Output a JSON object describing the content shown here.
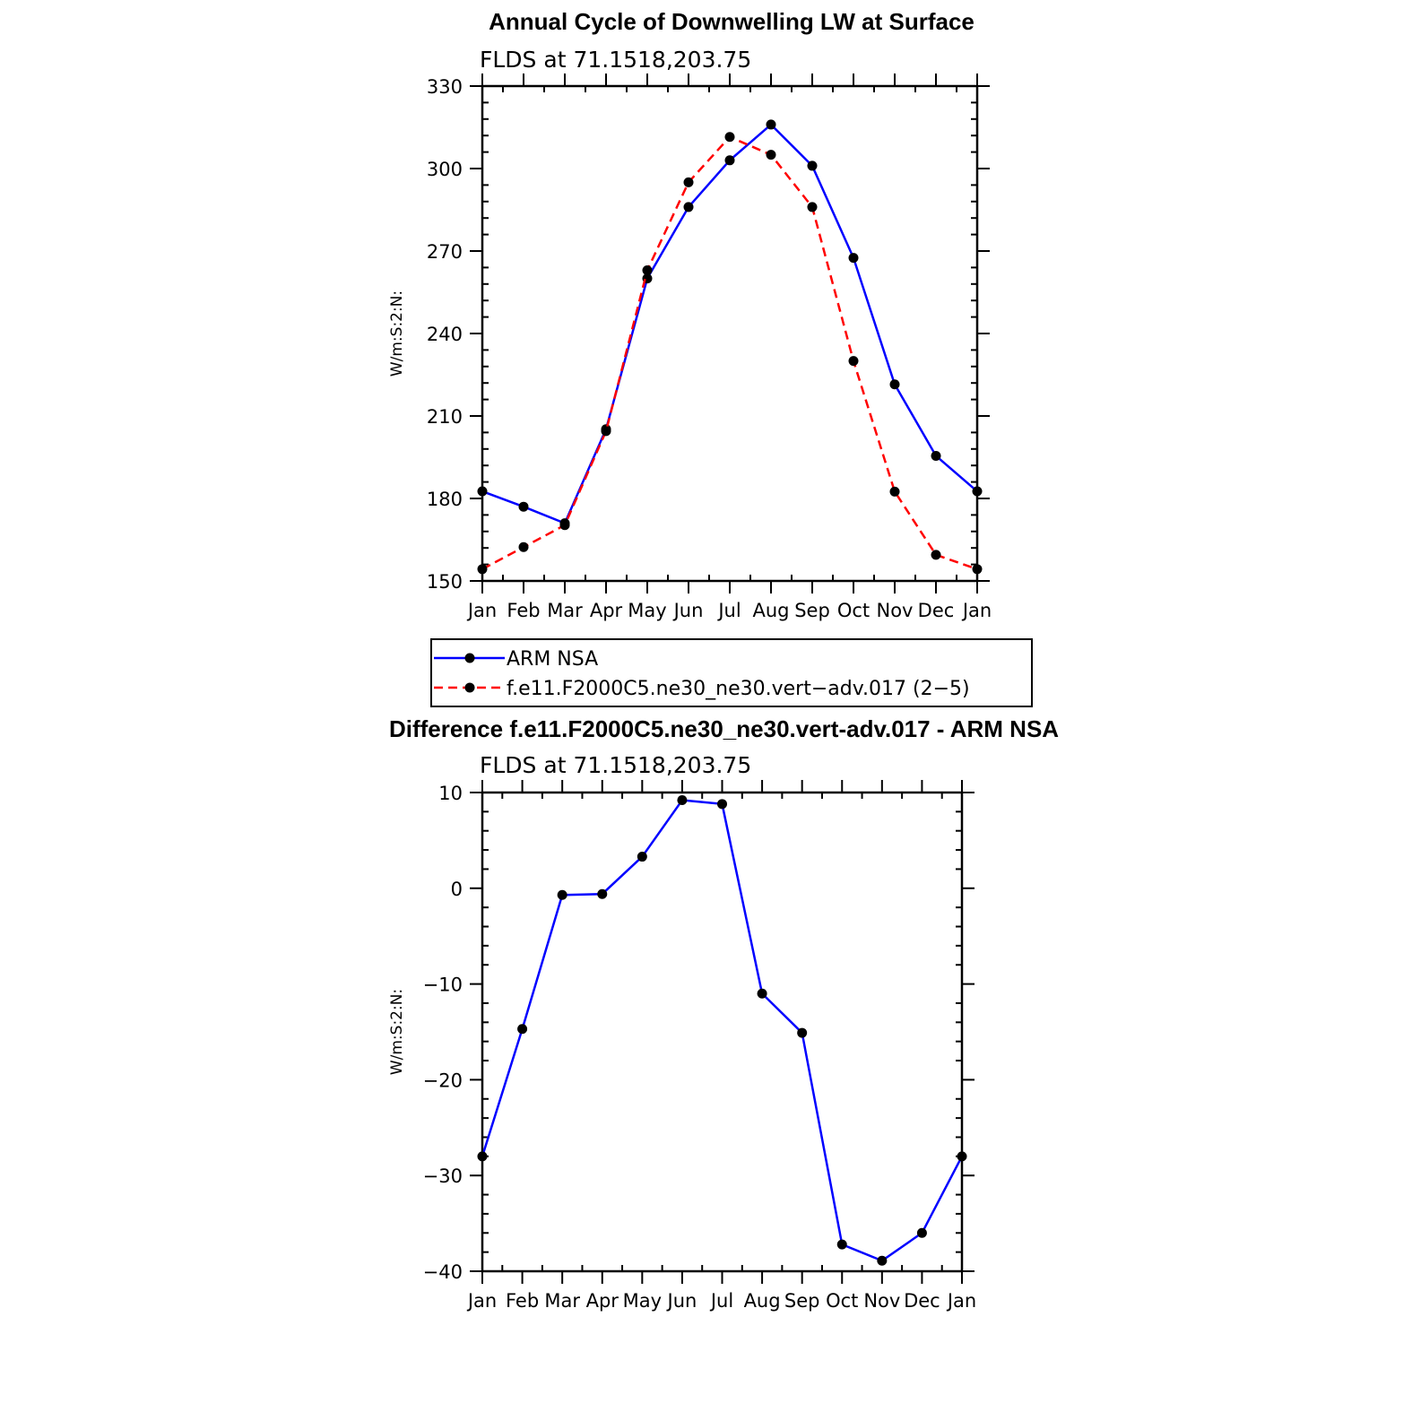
{
  "chart_data": [
    {
      "type": "line",
      "title": "Annual Cycle of Downwelling LW at Surface",
      "subtitle": "FLDS at 71.1518,203.75",
      "ylabel": "W/m:S:2:N:",
      "xlabel": "",
      "categories": [
        "Jan",
        "Feb",
        "Mar",
        "Apr",
        "May",
        "Jun",
        "Jul",
        "Aug",
        "Sep",
        "Oct",
        "Nov",
        "Dec",
        "Jan"
      ],
      "ylim": [
        150,
        330
      ],
      "yticks": [
        "150",
        "180",
        "210",
        "240",
        "270",
        "300",
        "330"
      ],
      "series": [
        {
          "name": "ARM NSA",
          "color": "#0000ff",
          "dash": "solid",
          "values": [
            182.6,
            177.0,
            171.0,
            205.2,
            260.0,
            286.0,
            303.0,
            316.0,
            301.0,
            267.5,
            221.5,
            195.5,
            182.6
          ]
        },
        {
          "name": "f.e11.F2000C5.ne30_ne30.vert−adv.017 (2−5)",
          "color": "#ff0000",
          "dash": "dashed",
          "values": [
            154.3,
            162.3,
            170.3,
            204.5,
            263.0,
            295.0,
            311.5,
            305.0,
            286.0,
            230.0,
            182.5,
            159.5,
            154.3
          ]
        }
      ],
      "legend": "below-plot",
      "grid": false
    },
    {
      "type": "line",
      "title": "Difference f.e11.F2000C5.ne30_ne30.vert-adv.017 - ARM NSA",
      "subtitle": "FLDS at 71.1518,203.75",
      "ylabel": "W/m:S:2:N:",
      "xlabel": "",
      "categories": [
        "Jan",
        "Feb",
        "Mar",
        "Apr",
        "May",
        "Jun",
        "Jul",
        "Aug",
        "Sep",
        "Oct",
        "Nov",
        "Dec",
        "Jan"
      ],
      "ylim": [
        -40,
        10
      ],
      "yticks": [
        "−40",
        "−30",
        "−20",
        "−10",
        "0",
        "10"
      ],
      "series": [
        {
          "color": "#0000ff",
          "dash": "solid",
          "values": [
            -28.0,
            -14.7,
            -0.7,
            -0.6,
            3.3,
            9.2,
            8.8,
            -11.0,
            -15.1,
            -37.2,
            -38.9,
            -36.0,
            -28.0
          ]
        }
      ],
      "grid": false
    }
  ]
}
